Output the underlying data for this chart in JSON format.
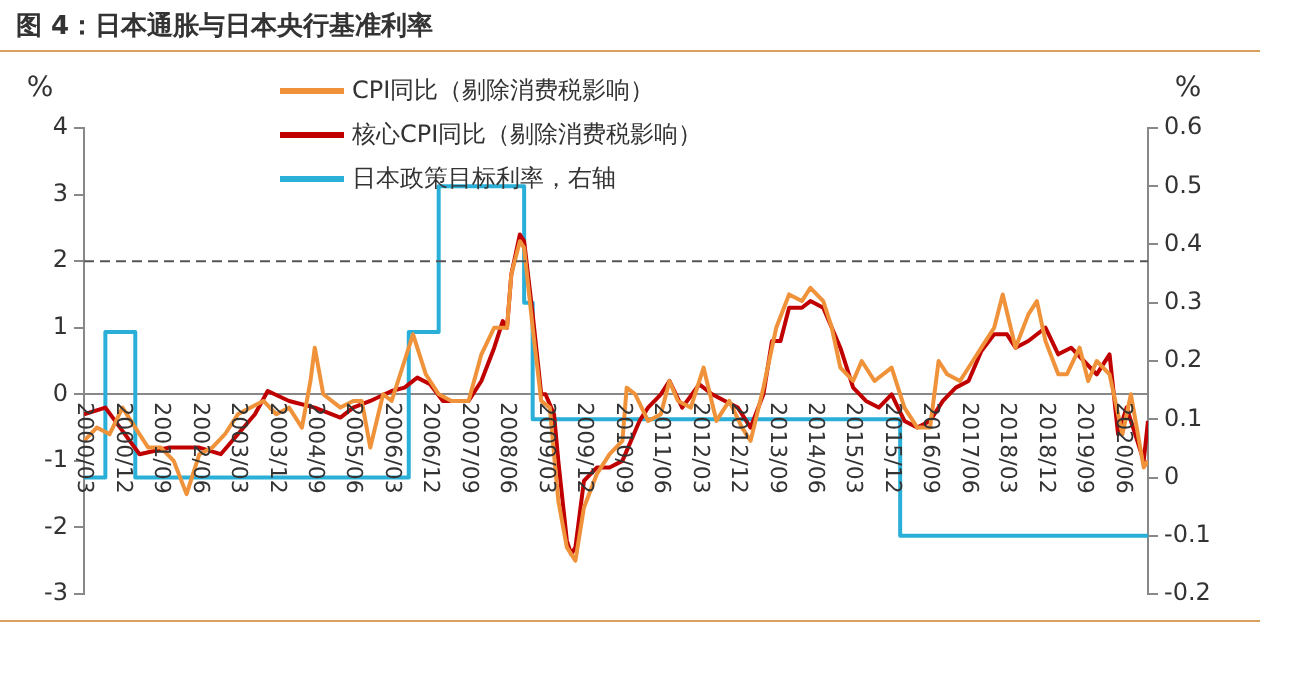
{
  "chart_data": {
    "type": "line",
    "title": "图 4：日本通胀与日本央行基准利率",
    "ylabel": "%",
    "y2label": "%",
    "xlim": [
      "2000-03",
      "2020-12"
    ],
    "xticks": [
      {
        "value": "2000-03",
        "label": "2000/03"
      },
      {
        "value": "2000-12",
        "label": "2000/12"
      },
      {
        "value": "2001-09",
        "label": "2001/09"
      },
      {
        "value": "2002-06",
        "label": "2002/06"
      },
      {
        "value": "2003-03",
        "label": "2003/03"
      },
      {
        "value": "2003-12",
        "label": "2003/12"
      },
      {
        "value": "2004-09",
        "label": "2004/09"
      },
      {
        "value": "2005-06",
        "label": "2005/06"
      },
      {
        "value": "2006-03",
        "label": "2006/03"
      },
      {
        "value": "2006-12",
        "label": "2006/12"
      },
      {
        "value": "2007-09",
        "label": "2007/09"
      },
      {
        "value": "2008-06",
        "label": "2008/06"
      },
      {
        "value": "2009-03",
        "label": "2009/03"
      },
      {
        "value": "2009-12",
        "label": "2009/12"
      },
      {
        "value": "2010-09",
        "label": "2010/09"
      },
      {
        "value": "2011-06",
        "label": "2011/06"
      },
      {
        "value": "2012-03",
        "label": "2012/03"
      },
      {
        "value": "2012-12",
        "label": "2012/12"
      },
      {
        "value": "2013-09",
        "label": "2013/09"
      },
      {
        "value": "2014-06",
        "label": "2014/06"
      },
      {
        "value": "2015-03",
        "label": "2015/03"
      },
      {
        "value": "2015-12",
        "label": "2015/12"
      },
      {
        "value": "2016-09",
        "label": "2016/09"
      },
      {
        "value": "2017-06",
        "label": "2017/06"
      },
      {
        "value": "2018-03",
        "label": "2018/03"
      },
      {
        "value": "2018-12",
        "label": "2018/12"
      },
      {
        "value": "2019-09",
        "label": "2019/09"
      },
      {
        "value": "2020-06",
        "label": "2020/06"
      }
    ],
    "ylim": [
      -3,
      4
    ],
    "yticks": [
      -3,
      -2,
      -1,
      0,
      1,
      2,
      3,
      4
    ],
    "y2lim": [
      -0.2,
      0.6
    ],
    "y2ticks": [
      -0.2,
      -0.1,
      0,
      0.1,
      0.2,
      0.3,
      0.4,
      0.5,
      0.6
    ],
    "grid": false,
    "legend": "top",
    "line_style": "solid",
    "ref_lines": [
      {
        "axis": "y",
        "value": 2,
        "color": "#555555",
        "line_style": "dashed"
      }
    ],
    "series": [
      {
        "name": "CPI同比（剔除消费税影响）",
        "color": "#f0923a",
        "x": [
          "2000-03",
          "2000-06",
          "2000-09",
          "2000-12",
          "2001-03",
          "2001-06",
          "2001-09",
          "2001-12",
          "2002-03",
          "2002-06",
          "2002-09",
          "2002-12",
          "2003-03",
          "2003-06",
          "2003-09",
          "2003-12",
          "2004-03",
          "2004-06",
          "2004-08",
          "2004-09",
          "2004-11",
          "2005-03",
          "2005-06",
          "2005-08",
          "2005-10",
          "2006-01",
          "2006-03",
          "2006-06",
          "2006-08",
          "2006-11",
          "2007-02",
          "2007-05",
          "2007-09",
          "2007-12",
          "2008-03",
          "2008-06",
          "2008-07",
          "2008-09",
          "2008-10",
          "2008-12",
          "2009-02",
          "2009-04",
          "2009-06",
          "2009-08",
          "2009-10",
          "2009-12",
          "2010-03",
          "2010-06",
          "2010-09",
          "2010-10",
          "2010-12",
          "2011-03",
          "2011-06",
          "2011-08",
          "2011-10",
          "2012-01",
          "2012-04",
          "2012-07",
          "2012-10",
          "2013-01",
          "2013-03",
          "2013-06",
          "2013-09",
          "2013-12",
          "2014-03",
          "2014-05",
          "2014-08",
          "2014-10",
          "2014-12",
          "2015-03",
          "2015-05",
          "2015-08",
          "2015-12",
          "2016-03",
          "2016-06",
          "2016-09",
          "2016-11",
          "2017-01",
          "2017-04",
          "2017-07",
          "2017-09",
          "2017-12",
          "2018-02",
          "2018-05",
          "2018-08",
          "2018-10",
          "2018-12",
          "2019-03",
          "2019-05",
          "2019-08",
          "2019-10",
          "2019-12",
          "2020-03",
          "2020-06",
          "2020-08",
          "2020-11",
          "2020-12"
        ],
        "values": [
          -0.7,
          -0.5,
          -0.6,
          -0.2,
          -0.5,
          -0.8,
          -0.8,
          -1.0,
          -1.5,
          -0.9,
          -0.8,
          -0.6,
          -0.3,
          -0.2,
          -0.1,
          -0.3,
          -0.2,
          -0.5,
          0.2,
          0.7,
          0.0,
          -0.2,
          -0.1,
          -0.1,
          -0.8,
          0.0,
          -0.1,
          0.5,
          0.9,
          0.3,
          0.0,
          -0.1,
          -0.1,
          0.6,
          1.0,
          1.0,
          1.8,
          2.3,
          2.2,
          1.0,
          -0.1,
          -0.2,
          -1.6,
          -2.3,
          -2.5,
          -1.7,
          -1.2,
          -0.9,
          -0.7,
          0.1,
          0.0,
          -0.4,
          -0.3,
          0.2,
          -0.1,
          -0.2,
          0.4,
          -0.4,
          -0.1,
          -0.5,
          -0.7,
          0.1,
          1.0,
          1.5,
          1.4,
          1.6,
          1.4,
          1.0,
          0.4,
          0.2,
          0.5,
          0.2,
          0.4,
          -0.2,
          -0.5,
          -0.5,
          0.5,
          0.3,
          0.2,
          0.5,
          0.7,
          1.0,
          1.5,
          0.7,
          1.2,
          1.4,
          0.8,
          0.3,
          0.3,
          0.7,
          0.2,
          0.5,
          0.3,
          -0.6,
          0.0,
          -1.1,
          -1.0
        ]
      },
      {
        "name": "核心CPI同比（剔除消费税影响）",
        "color": "#c00000",
        "x": [
          "2000-03",
          "2000-08",
          "2000-12",
          "2001-04",
          "2001-11",
          "2002-06",
          "2002-11",
          "2003-03",
          "2003-07",
          "2003-10",
          "2004-03",
          "2004-09",
          "2005-03",
          "2005-06",
          "2005-10",
          "2006-03",
          "2006-06",
          "2006-09",
          "2006-12",
          "2007-03",
          "2007-06",
          "2007-09",
          "2007-12",
          "2008-03",
          "2008-05",
          "2008-06",
          "2008-07",
          "2008-09",
          "2008-10",
          "2008-12",
          "2009-02",
          "2009-03",
          "2009-05",
          "2009-06",
          "2009-08",
          "2009-09",
          "2009-10",
          "2009-11",
          "2009-12",
          "2010-03",
          "2010-06",
          "2010-09",
          "2010-11",
          "2011-01",
          "2011-03",
          "2011-06",
          "2011-08",
          "2011-11",
          "2012-03",
          "2012-06",
          "2012-09",
          "2012-12",
          "2013-03",
          "2013-06",
          "2013-08",
          "2013-10",
          "2013-12",
          "2014-03",
          "2014-05",
          "2014-08",
          "2014-10",
          "2014-12",
          "2015-03",
          "2015-06",
          "2015-09",
          "2015-12",
          "2016-03",
          "2016-06",
          "2016-09",
          "2016-12",
          "2017-03",
          "2017-06",
          "2017-09",
          "2017-12",
          "2018-03",
          "2018-05",
          "2018-08",
          "2018-12",
          "2019-03",
          "2019-06",
          "2019-09",
          "2019-12",
          "2020-03",
          "2020-05",
          "2020-07",
          "2020-09",
          "2020-11",
          "2020-12"
        ],
        "values": [
          -0.3,
          -0.2,
          -0.55,
          -0.9,
          -0.8,
          -0.8,
          -0.9,
          -0.6,
          -0.3,
          0.05,
          -0.1,
          -0.2,
          -0.35,
          -0.2,
          -0.1,
          0.05,
          0.1,
          0.25,
          0.15,
          -0.1,
          -0.1,
          -0.1,
          0.2,
          0.7,
          1.1,
          1.0,
          1.8,
          2.4,
          2.3,
          1.2,
          0.0,
          0.0,
          -0.3,
          -1.0,
          -2.2,
          -2.4,
          -2.3,
          -1.8,
          -1.3,
          -1.1,
          -1.1,
          -1.0,
          -0.7,
          -0.4,
          -0.2,
          0.0,
          0.2,
          -0.2,
          0.15,
          0.0,
          -0.1,
          -0.2,
          -0.5,
          0.0,
          0.8,
          0.8,
          1.3,
          1.3,
          1.4,
          1.3,
          1.0,
          0.7,
          0.1,
          -0.1,
          -0.2,
          0.0,
          -0.4,
          -0.5,
          -0.4,
          -0.1,
          0.1,
          0.2,
          0.65,
          0.9,
          0.9,
          0.7,
          0.8,
          1.0,
          0.6,
          0.7,
          0.5,
          0.3,
          0.6,
          -0.6,
          -0.2,
          -0.6,
          -1.0,
          -0.4
        ]
      },
      {
        "name": "日本政策目标利率，右轴",
        "color": "#2ab0d8",
        "type": "step",
        "axis": "y2",
        "x": [
          "2000-03",
          "2000-08",
          "2001-03",
          "2006-07",
          "2007-02",
          "2008-10",
          "2008-12",
          "2016-02",
          "2020-12"
        ],
        "values": [
          0,
          0.25,
          0,
          0.25,
          0.5,
          0.3,
          0.1,
          -0.1,
          -0.1
        ]
      }
    ]
  }
}
